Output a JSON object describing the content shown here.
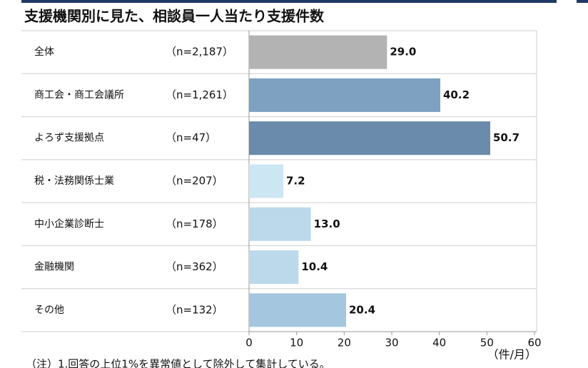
{
  "chart_data": {
    "type": "bar",
    "orientation": "horizontal",
    "title": "支援機関別に見た、相談員一人当たり支援件数",
    "categories": [
      "全体",
      "商工会・商工会議所",
      "よろず支援拠点",
      "税・法務関係士業",
      "中小企業診断士",
      "金融機関",
      "その他"
    ],
    "sample_sizes": [
      "（n=2,187）",
      "（n=1,261）",
      "（n=47）",
      "（n=207）",
      "（n=178）",
      "（n=362）",
      "（n=132）"
    ],
    "values": [
      29,
      40.2,
      50.7,
      7.2,
      13,
      10.4,
      20.4
    ],
    "value_labels": [
      "29.0",
      "40.2",
      "50.7",
      "7.2",
      "13.0",
      "10.4",
      "20.4"
    ],
    "colors": [
      "#b3b3b3",
      "#7ea1c2",
      "#6b8bac",
      "#cde6f4",
      "#bcd9ec",
      "#bcd9ec",
      "#a4c7df"
    ],
    "xlim": [
      0,
      60
    ],
    "xticks": [
      0,
      10,
      20,
      30,
      40,
      50,
      60
    ],
    "x_unit": "（件/月）",
    "note": "（注）1.回答の上位1%を異常値として除外して集計している。"
  }
}
